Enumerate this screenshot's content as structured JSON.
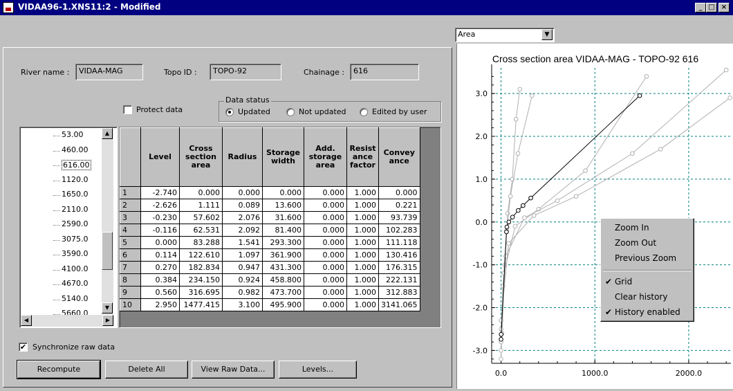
{
  "window": {
    "title": "VIDAA96-1.XNS11:2 - Modified",
    "min": "_",
    "max": "□",
    "close": "×"
  },
  "header": {
    "river_label": "River name :",
    "river_value": "VIDAA-MAG",
    "topo_label": "Topo ID :",
    "topo_value": "TOPO-92",
    "chainage_label": "Chainage :",
    "chainage_value": "616"
  },
  "options": {
    "protect_label": "Protect data",
    "protect_checked": false,
    "status_group": "Data status",
    "status_options": [
      "Updated",
      "Not updated",
      "Edited by user"
    ],
    "status_selected": "Updated"
  },
  "tree": {
    "items": [
      "53.00",
      "460.00",
      "616.00",
      "1120.0",
      "1650.0",
      "2110.0",
      "2590.0",
      "3075.0",
      "3590.0",
      "4100.0",
      "4670.0",
      "5140.0",
      "5660.0"
    ],
    "selected": "616.00"
  },
  "table": {
    "headers": [
      "Level",
      "Cross section area",
      "Radius",
      "Storage width",
      "Add. storage area",
      "Resist ance factor",
      "Convey ance"
    ],
    "rows": [
      [
        "1",
        "-2.740",
        "0.000",
        "0.000",
        "0.000",
        "0.000",
        "1.000",
        "0.000"
      ],
      [
        "2",
        "-2.626",
        "1.111",
        "0.089",
        "13.600",
        "0.000",
        "1.000",
        "0.221"
      ],
      [
        "3",
        "-0.230",
        "57.602",
        "2.076",
        "31.600",
        "0.000",
        "1.000",
        "93.739"
      ],
      [
        "4",
        "-0.116",
        "62.531",
        "2.092",
        "81.400",
        "0.000",
        "1.000",
        "102.283"
      ],
      [
        "5",
        "0.000",
        "83.288",
        "1.541",
        "293.300",
        "0.000",
        "1.000",
        "111.118"
      ],
      [
        "6",
        "0.114",
        "122.610",
        "1.097",
        "361.900",
        "0.000",
        "1.000",
        "130.416"
      ],
      [
        "7",
        "0.270",
        "182.834",
        "0.947",
        "431.300",
        "0.000",
        "1.000",
        "176.315"
      ],
      [
        "8",
        "0.384",
        "234.150",
        "0.924",
        "458.800",
        "0.000",
        "1.000",
        "222.131"
      ],
      [
        "9",
        "0.560",
        "316.695",
        "0.982",
        "473.700",
        "0.000",
        "1.000",
        "312.883"
      ],
      [
        "10",
        "2.950",
        "1477.415",
        "3.100",
        "495.900",
        "0.000",
        "1.000",
        "3141.065"
      ]
    ]
  },
  "sync": {
    "label": "Synchronize raw data",
    "checked": true
  },
  "buttons": {
    "recompute": "Recompute",
    "delete_all": "Delete All",
    "view_raw": "View Raw Data...",
    "levels": "Levels..."
  },
  "chart_select": {
    "value": "Area"
  },
  "context_menu": {
    "items": [
      {
        "label": "Zoom In",
        "check": ""
      },
      {
        "label": "Zoom Out",
        "check": ""
      },
      {
        "label": "Previous Zoom",
        "check": ""
      },
      {
        "label": "Grid",
        "check": "✔"
      },
      {
        "label": "Clear history",
        "check": ""
      },
      {
        "label": "History enabled",
        "check": "✔"
      }
    ]
  },
  "chart_data": {
    "type": "line",
    "title": "Cross section area VIDAA-MAG - TOPO-92 616",
    "xlim": [
      -100,
      2450
    ],
    "ylim": [
      -3.3,
      3.6
    ],
    "xticks": [
      "0.0",
      "1000.0",
      "2000.0"
    ],
    "xtick_values": [
      0,
      1000,
      2000
    ],
    "yticks": [
      "3.0",
      "2.0",
      "1.0",
      "0.0",
      "-1.0",
      "-2.0",
      "-3.0"
    ],
    "ytick_values": [
      3,
      2,
      1,
      0,
      -1,
      -2,
      -3
    ],
    "grid": true,
    "series": [
      {
        "role": "current",
        "color": "#000000",
        "points": [
          [
            0,
            -2.74
          ],
          [
            1.1,
            -2.626
          ],
          [
            57.6,
            -0.23
          ],
          [
            62.5,
            -0.116
          ],
          [
            83.3,
            0.0
          ],
          [
            122.6,
            0.114
          ],
          [
            182.8,
            0.27
          ],
          [
            234.2,
            0.384
          ],
          [
            316.7,
            0.56
          ],
          [
            1477.4,
            2.95
          ]
        ]
      },
      {
        "role": "history",
        "color": "#b0b0b0",
        "points": [
          [
            0,
            -3.2
          ],
          [
            10,
            -2.6
          ],
          [
            40,
            -1.0
          ],
          [
            70,
            0.2
          ],
          [
            120,
            1.0
          ],
          [
            160,
            2.4
          ],
          [
            200,
            3.1
          ]
        ]
      },
      {
        "role": "history",
        "color": "#b0b0b0",
        "points": [
          [
            0,
            -3.0
          ],
          [
            20,
            -1.5
          ],
          [
            60,
            -0.2
          ],
          [
            100,
            0.6
          ],
          [
            180,
            1.6
          ],
          [
            330,
            2.95
          ]
        ]
      },
      {
        "role": "history",
        "color": "#b0b0b0",
        "points": [
          [
            0,
            -2.8
          ],
          [
            30,
            -1.2
          ],
          [
            150,
            -0.1
          ],
          [
            400,
            0.3
          ],
          [
            900,
            1.2
          ],
          [
            1550,
            3.4
          ]
        ]
      },
      {
        "role": "history",
        "color": "#b0b0b0",
        "points": [
          [
            0,
            -2.5
          ],
          [
            50,
            -0.8
          ],
          [
            250,
            0.1
          ],
          [
            600,
            0.5
          ],
          [
            1400,
            1.6
          ],
          [
            2400,
            3.55
          ]
        ]
      },
      {
        "role": "history",
        "color": "#b0b0b0",
        "points": [
          [
            0,
            -2.3
          ],
          [
            80,
            -0.5
          ],
          [
            350,
            0.15
          ],
          [
            800,
            0.6
          ],
          [
            1700,
            1.7
          ],
          [
            2440,
            2.9
          ]
        ]
      }
    ]
  }
}
